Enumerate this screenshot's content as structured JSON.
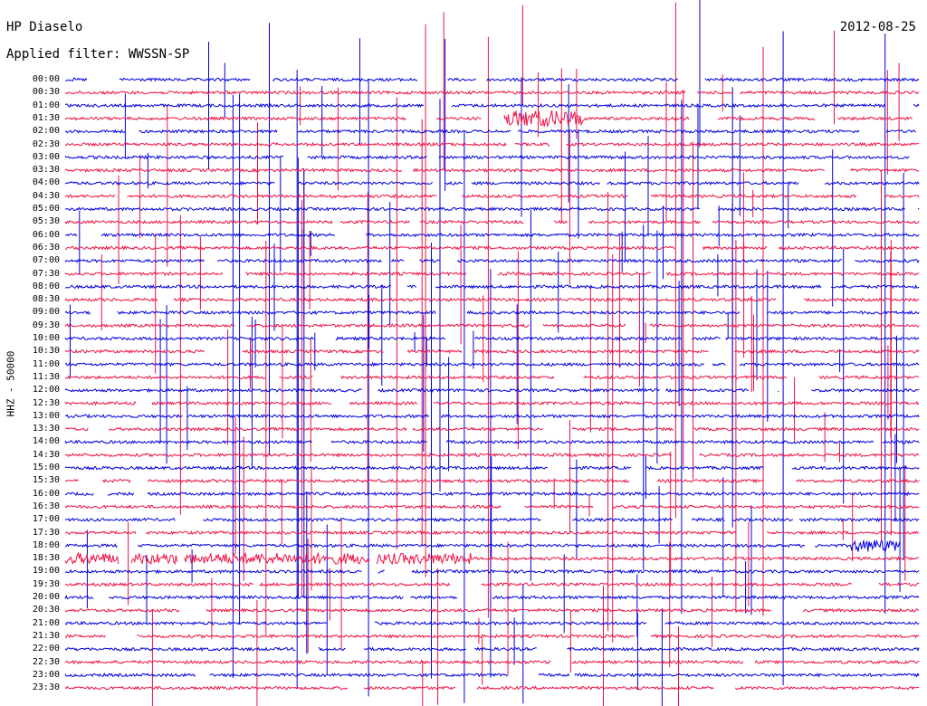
{
  "header": {
    "station": "HP Diaselo",
    "date": "2012-08-25",
    "filter": "Applied filter: WWSSN-SP"
  },
  "axis": {
    "ylabel": "HHZ - 50000"
  },
  "colors": {
    "even_trace": "#0000dd",
    "odd_trace": "#ee1144",
    "background": "#ffffff"
  },
  "chart_data": {
    "type": "line",
    "title": "HP Diaselo",
    "subtitle": "Applied filter: WWSSN-SP",
    "ylabel": "HHZ - 50000",
    "xlabel": "",
    "categories": [
      "00:00",
      "00:30",
      "01:00",
      "01:30",
      "02:00",
      "02:30",
      "03:00",
      "03:30",
      "04:00",
      "04:30",
      "05:00",
      "05:30",
      "06:00",
      "06:30",
      "07:00",
      "07:30",
      "08:00",
      "08:30",
      "09:00",
      "09:30",
      "10:00",
      "10:30",
      "11:00",
      "11:30",
      "12:00",
      "12:30",
      "13:00",
      "13:30",
      "14:00",
      "14:30",
      "15:00",
      "15:30",
      "16:00",
      "16:30",
      "17:00",
      "17:30",
      "18:00",
      "18:30",
      "19:00",
      "19:30",
      "20:00",
      "20:30",
      "21:00",
      "21:30",
      "22:00",
      "22:30",
      "23:00",
      "23:30"
    ],
    "row_start_times_label": "time labels on y-axis (30-minute helicorder rows)",
    "series_colors_alternate": [
      "blue",
      "red"
    ],
    "notable_events": [
      {
        "row": "01:30",
        "color": "red",
        "description": "high-amplitude burst"
      },
      {
        "row": "18:00",
        "color": "blue",
        "description": "high-amplitude burst near end of row"
      },
      {
        "row": "18:30",
        "color": "red",
        "description": "elevated amplitude through first half of row"
      }
    ]
  }
}
